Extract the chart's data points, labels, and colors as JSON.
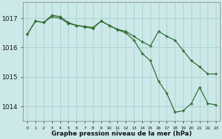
{
  "hours": [
    0,
    1,
    2,
    3,
    4,
    5,
    6,
    7,
    8,
    9,
    10,
    11,
    12,
    13,
    14,
    15,
    16,
    17,
    18,
    19,
    20,
    21,
    22,
    23
  ],
  "line_lower": [
    1016.45,
    1016.9,
    1016.85,
    1017.1,
    1017.05,
    1016.85,
    1016.75,
    1016.7,
    1016.65,
    1016.9,
    1016.75,
    1016.6,
    1016.5,
    1016.25,
    1015.8,
    1015.55,
    1014.85,
    1014.45,
    1013.8,
    1013.85,
    1014.1,
    1014.65,
    1014.1,
    1014.05
  ],
  "line_upper": [
    1016.45,
    1016.9,
    1016.85,
    1017.05,
    1017.0,
    1016.82,
    1016.75,
    1016.72,
    1016.68,
    1016.9,
    1016.75,
    1016.62,
    1016.55,
    1016.38,
    1016.2,
    1016.05,
    1016.55,
    1016.38,
    1016.25,
    1015.9,
    1015.55,
    1015.35,
    1015.1,
    1015.1
  ],
  "line_color": "#2d6a2d",
  "bg_color": "#cce8e8",
  "grid_color": "#aad4d4",
  "title": "Graphe pression niveau de la mer (hPa)",
  "yticks": [
    1014,
    1015,
    1016,
    1017
  ],
  "ylim": [
    1013.5,
    1017.55
  ],
  "xlim": [
    -0.5,
    23.5
  ]
}
